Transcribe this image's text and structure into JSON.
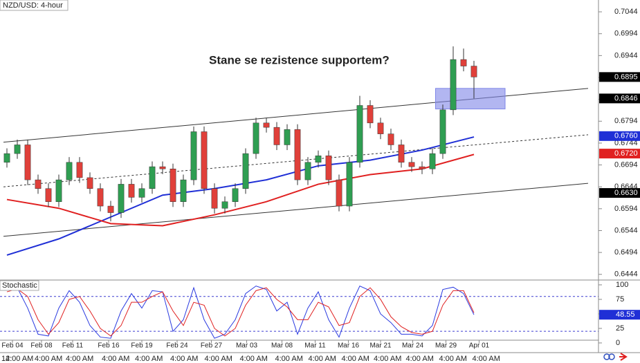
{
  "chart_data": [
    {
      "type": "candlestick",
      "title": "NZD/USD: 4-hour",
      "annotation": "Stane se rezistence supportem?",
      "xlim": [
        -0.667,
        57
      ],
      "ylim": [
        0.6431,
        0.7071
      ],
      "yticks": [
        0.7044,
        0.6994,
        0.6944,
        0.6894,
        0.6844,
        0.6794,
        0.6744,
        0.6694,
        0.6644,
        0.6594,
        0.6544,
        0.6494,
        0.6444
      ],
      "up_color": "#2f9e52",
      "down_color": "#e0403a",
      "open": [
        0.67,
        0.672,
        0.674,
        0.666,
        0.664,
        0.661,
        0.666,
        0.67,
        0.6665,
        0.664,
        0.66,
        0.6585,
        0.665,
        0.662,
        0.664,
        0.669,
        0.6685,
        0.661,
        0.666,
        0.677,
        0.664,
        0.6595,
        0.661,
        0.664,
        0.672,
        0.679,
        0.678,
        0.674,
        0.6775,
        0.666,
        0.67,
        0.6715,
        0.666,
        0.66,
        0.67,
        0.683,
        0.679,
        0.6765,
        0.674,
        0.67,
        0.669,
        0.6685,
        0.672,
        0.682,
        0.6935,
        0.692
      ],
      "high": [
        0.6732,
        0.6752,
        0.6752,
        0.6672,
        0.6652,
        0.6672,
        0.6712,
        0.6712,
        0.6677,
        0.6652,
        0.6612,
        0.6662,
        0.6662,
        0.6652,
        0.6702,
        0.6702,
        0.6697,
        0.6672,
        0.6782,
        0.6782,
        0.6652,
        0.6622,
        0.6652,
        0.6732,
        0.6802,
        0.6802,
        0.6792,
        0.6787,
        0.6787,
        0.6712,
        0.6727,
        0.6727,
        0.6672,
        0.6712,
        0.6852,
        0.6842,
        0.6802,
        0.6777,
        0.6752,
        0.6712,
        0.6702,
        0.6732,
        0.6832,
        0.6965,
        0.696,
        0.6932
      ],
      "low": [
        0.6688,
        0.6708,
        0.6648,
        0.6628,
        0.6598,
        0.6598,
        0.6648,
        0.6653,
        0.6628,
        0.6588,
        0.6565,
        0.6573,
        0.6608,
        0.6608,
        0.6628,
        0.6673,
        0.6598,
        0.6598,
        0.6648,
        0.6628,
        0.6583,
        0.6583,
        0.6598,
        0.6628,
        0.6708,
        0.6768,
        0.6728,
        0.6728,
        0.6648,
        0.6648,
        0.6688,
        0.6648,
        0.6588,
        0.6588,
        0.6688,
        0.6778,
        0.6753,
        0.6728,
        0.6688,
        0.6678,
        0.6673,
        0.6673,
        0.6708,
        0.6808,
        0.6908,
        0.6846
      ],
      "close": [
        0.672,
        0.674,
        0.666,
        0.664,
        0.661,
        0.666,
        0.67,
        0.6665,
        0.664,
        0.66,
        0.6585,
        0.665,
        0.662,
        0.664,
        0.669,
        0.6685,
        0.661,
        0.666,
        0.677,
        0.664,
        0.6595,
        0.661,
        0.664,
        0.672,
        0.679,
        0.678,
        0.674,
        0.6775,
        0.666,
        0.67,
        0.6715,
        0.666,
        0.66,
        0.67,
        0.683,
        0.679,
        0.6765,
        0.674,
        0.67,
        0.669,
        0.6685,
        0.672,
        0.682,
        0.6935,
        0.692,
        0.6895
      ],
      "moving_averages": [
        {
          "color": "#1f2fd6",
          "x": [
            0,
            5,
            10,
            15,
            20,
            25,
            30,
            35,
            40,
            45
          ],
          "values": [
            0.6488,
            0.6525,
            0.6575,
            0.6625,
            0.664,
            0.666,
            0.6692,
            0.6705,
            0.6728,
            0.6758
          ]
        },
        {
          "color": "#e02020",
          "x": [
            0,
            5,
            10,
            15,
            20,
            25,
            30,
            35,
            40,
            45
          ],
          "values": [
            0.6615,
            0.6595,
            0.656,
            0.6555,
            0.658,
            0.661,
            0.665,
            0.6672,
            0.6685,
            0.6718
          ]
        }
      ],
      "trendlines": [
        {
          "x": [
            -0.33,
            56
          ],
          "y": [
            0.6746,
            0.6869
          ],
          "style": "solid"
        },
        {
          "x": [
            -0.33,
            56
          ],
          "y": [
            0.6644,
            0.6763
          ],
          "style": "dashed"
        },
        {
          "x": [
            -0.33,
            56
          ],
          "y": [
            0.6531,
            0.6652
          ],
          "style": "solid"
        }
      ],
      "zone": {
        "x": [
          41.3,
          48
        ],
        "y": [
          0.6822,
          0.6869
        ],
        "color": "#7f86e8"
      },
      "price_labels": [
        {
          "value": 0.6895,
          "color": "#000000"
        },
        {
          "value": 0.6846,
          "color": "#000000"
        },
        {
          "value": {
            "value": 0.676,
            "label": "0.6760"
          },
          "color": "#1f2fd6"
        },
        {
          "value": {
            "value": 0.672,
            "label": "0.6720"
          },
          "color": "#e02020"
        },
        {
          "value": {
            "value": 0.663,
            "label": "0.6630"
          },
          "color": "#000000"
        }
      ]
    },
    {
      "type": "line",
      "title": "Stochastic",
      "xlim": [
        -0.667,
        57
      ],
      "ylim": [
        -4.8,
        108.3
      ],
      "yticks": [
        100,
        75,
        50,
        25,
        0
      ],
      "levels": [
        80,
        20
      ],
      "level_color": "#3b3bd0",
      "series": [
        {
          "color": "#2a3ae0",
          "values": [
            92,
            95,
            60,
            15,
            12,
            60,
            90,
            70,
            30,
            10,
            8,
            55,
            85,
            60,
            90,
            88,
            20,
            40,
            95,
            40,
            8,
            15,
            40,
            85,
            98,
            92,
            55,
            70,
            15,
            60,
            88,
            40,
            10,
            60,
            98,
            90,
            50,
            35,
            15,
            15,
            12,
            30,
            92,
            96,
            85,
            48.55
          ]
        },
        {
          "color": "#e02020",
          "values": [
            88,
            93,
            80,
            40,
            15,
            35,
            75,
            80,
            55,
            25,
            12,
            30,
            70,
            70,
            80,
            88,
            55,
            30,
            70,
            65,
            25,
            12,
            25,
            65,
            90,
            95,
            75,
            62,
            40,
            40,
            70,
            62,
            30,
            35,
            80,
            95,
            75,
            45,
            28,
            18,
            15,
            20,
            65,
            90,
            90,
            52
          ]
        }
      ],
      "value_label": {
        "value": 48.55,
        "color": "#1f2fd6"
      },
      "xticks": [
        {
          "value": 0.53,
          "label": "Feb 04"
        },
        {
          "value": 3.33,
          "label": "Feb 08"
        },
        {
          "value": 6.33,
          "label": "Feb 11"
        },
        {
          "value": 9.8,
          "label": "Feb 16"
        },
        {
          "value": 13,
          "label": "Feb 19"
        },
        {
          "value": 16.4,
          "label": "Feb 24"
        },
        {
          "value": 19.7,
          "label": "Feb 27"
        },
        {
          "value": 23.1,
          "label": "Mar 03"
        },
        {
          "value": 26.5,
          "label": "Mar 08"
        },
        {
          "value": 29.7,
          "label": "Mar 11"
        },
        {
          "value": 32.9,
          "label": "Mar 16"
        },
        {
          "value": 36,
          "label": "Mar 21"
        },
        {
          "value": 39.1,
          "label": "Mar 24"
        },
        {
          "value": 42.3,
          "label": "Mar 29"
        },
        {
          "value": 45.5,
          "label": "Apr 01"
        }
      ],
      "time_labels": [
        "12:",
        "4:00 AM",
        "4:00 AM",
        "4:00 AM",
        "4:00 AM",
        "4:00 AM",
        "4:00 AM",
        "4:00 AM",
        "4:00 AM",
        "4:00 AM",
        "4:00 AM",
        "4:00 AM",
        "4:00 AM",
        "4:00 AM",
        "4:00 AM",
        "4:00 AM"
      ]
    }
  ]
}
